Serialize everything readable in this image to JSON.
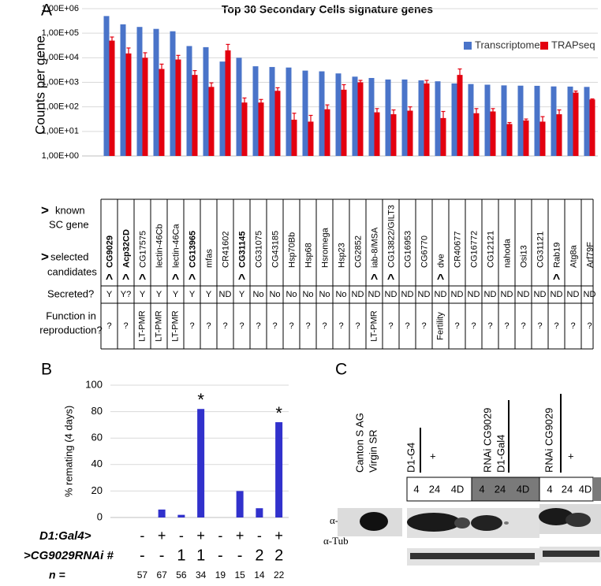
{
  "chart_data": [
    {
      "type": "bar",
      "panel_label": "A",
      "title": "Top 30 Secondary Cells signature genes",
      "y_label": "Counts per gene",
      "log_y": true,
      "grid": true,
      "legend": "top-right",
      "categories": [
        "CG9029",
        "Acp32CD",
        "CG17575",
        "lectin-46Cb",
        "lectin-46Ca",
        "CG13965",
        "mfas",
        "CR41602",
        "CG31145",
        "CG31075",
        "CG43185",
        "Hsp70Bb",
        "Hsp68",
        "Hsromega",
        "Hsp23",
        "CG2852",
        "iab-8/MSA",
        "CG13822/GILT3",
        "CG16953",
        "CG6770",
        "dve",
        "CR40677",
        "CG16772",
        "CG12121",
        "nahoda",
        "Osi13",
        "CG31121",
        "Rab19",
        "Atg8a",
        "Arf79F"
      ],
      "series": [
        {
          "name": "Transcriptome",
          "color": "#4a74c9",
          "values": [
            500000,
            230000,
            180000,
            150000,
            120000,
            30000,
            27000,
            7000,
            10000,
            4500,
            4200,
            4000,
            3000,
            2800,
            2300,
            1700,
            1500,
            1300,
            1300,
            1200,
            1100,
            900,
            850,
            800,
            750,
            730,
            720,
            680,
            670,
            650
          ]
        },
        {
          "name": "TRAPseq",
          "color": "#e3000f",
          "values": [
            50000,
            15000,
            10000,
            3500,
            8500,
            2000,
            650,
            20000,
            150,
            150,
            450,
            30,
            25,
            80,
            500,
            1000,
            60,
            50,
            70,
            900,
            35,
            2000,
            55,
            65,
            20,
            28,
            25,
            50,
            380,
            200
          ],
          "errors": [
            20000,
            10000,
            6000,
            2000,
            4000,
            1000,
            300,
            15000,
            80,
            50,
            150,
            25,
            20,
            40,
            300,
            200,
            25,
            25,
            30,
            300,
            30,
            1500,
            30,
            20,
            3,
            4,
            15,
            25,
            60,
            10
          ]
        }
      ],
      "ylim": [
        1,
        1000000
      ],
      "yticks": [
        {
          "value": 1,
          "label": "1,00E+00"
        },
        {
          "value": 10,
          "label": "1,00E+01"
        },
        {
          "value": 100,
          "label": "1,00E+02"
        },
        {
          "value": 1000,
          "label": "1,00E+03"
        },
        {
          "value": 10000,
          "label": "1,00E+04"
        },
        {
          "value": 100000,
          "label": "1,00E+05"
        },
        {
          "value": 1000000,
          "label": "1,00E+06"
        }
      ]
    },
    {
      "type": "bar",
      "panel_label": "B",
      "y_label": "% remating (4 days)",
      "grid": true,
      "values": [
        0,
        6,
        2,
        82,
        0,
        20,
        7,
        72
      ],
      "color": "#3131cc",
      "annotations": [
        null,
        null,
        null,
        "*",
        null,
        null,
        null,
        "*"
      ],
      "ylim": [
        0,
        100
      ],
      "yticks": [
        0,
        20,
        40,
        60,
        80,
        100
      ]
    }
  ],
  "panel_a_table": {
    "known_symbol": ">",
    "known_label": [
      "known",
      "SC gene"
    ],
    "known_color": "#3cb043",
    "selected_symbol": ">",
    "selected_label": [
      "selected",
      "candidates"
    ],
    "selected_color": "#1515d6",
    "markers": [
      {
        "symbol": "^",
        "color": "#1515d6"
      },
      {
        "symbol": "^",
        "color": "#1515d6"
      },
      {
        "symbol": "^",
        "color": "#3cb043"
      },
      null,
      {
        "symbol": "^",
        "color": "#3cb043"
      },
      {
        "symbol": "^",
        "color": "#1515d6"
      },
      null,
      null,
      {
        "symbol": "^",
        "color": "#1515d6"
      },
      null,
      null,
      null,
      null,
      null,
      null,
      null,
      {
        "symbol": "^",
        "color": "#3cb043"
      },
      {
        "symbol": "^",
        "color": "#1515d6"
      },
      null,
      null,
      {
        "symbol": "^",
        "color": "#3cb043"
      },
      null,
      null,
      null,
      null,
      null,
      null,
      {
        "symbol": "^",
        "color": "#3cb043"
      },
      null,
      null
    ],
    "bold": [
      true,
      true,
      false,
      false,
      false,
      true,
      false,
      false,
      true,
      false,
      false,
      false,
      false,
      false,
      false,
      false,
      false,
      false,
      false,
      false,
      false,
      false,
      false,
      false,
      false,
      false,
      false,
      false,
      false,
      false
    ],
    "secreted_label": "Secreted?",
    "secreted": [
      "Y",
      "Y?",
      "Y",
      "Y",
      "Y",
      "Y",
      "Y",
      "ND",
      "Y",
      "No",
      "No",
      "No",
      "No",
      "No",
      "No",
      "ND",
      "ND",
      "ND",
      "ND",
      "ND",
      "ND",
      "ND",
      "ND",
      "ND",
      "ND",
      "ND",
      "ND",
      "ND",
      "ND",
      "ND"
    ],
    "function_label": [
      "Function in",
      "reproduction?"
    ],
    "function": [
      "?",
      "?",
      "LT-PMR",
      "LT-PMR",
      "LT-PMR",
      "?",
      "?",
      "?",
      "?",
      "?",
      "?",
      "?",
      "?",
      "?",
      "?",
      "?",
      "LT-PMR",
      "?",
      "?",
      "?",
      "Fertility",
      "?",
      "?",
      "?",
      "?",
      "?",
      "?",
      "?",
      "?",
      "?"
    ]
  },
  "panel_b_table": {
    "rows": [
      {
        "label": "D1:Gal4>",
        "cells": [
          "-",
          "+",
          "-",
          "+",
          "-",
          "+",
          "-",
          "+"
        ]
      },
      {
        "label": ">CG9029RNAi #",
        "cells": [
          "-",
          "-",
          "1",
          "1",
          "-",
          "-",
          "2",
          "2"
        ]
      },
      {
        "label": "n =",
        "cells": [
          57,
          67,
          56,
          34,
          19,
          15,
          14,
          22
        ]
      }
    ]
  },
  "panel_c": {
    "label": "C",
    "control": [
      "Canton S AG",
      "Virgin SR"
    ],
    "d1": "D1-G4",
    "plus": "+",
    "rnai_d1": [
      "RNAi CG9029",
      "D1-Gal4"
    ],
    "rnai": "RNAi CG9029",
    "timepoints": [
      "4",
      "24",
      "4D"
    ],
    "antibodies": [
      "α-SP",
      "α-Tub"
    ]
  }
}
